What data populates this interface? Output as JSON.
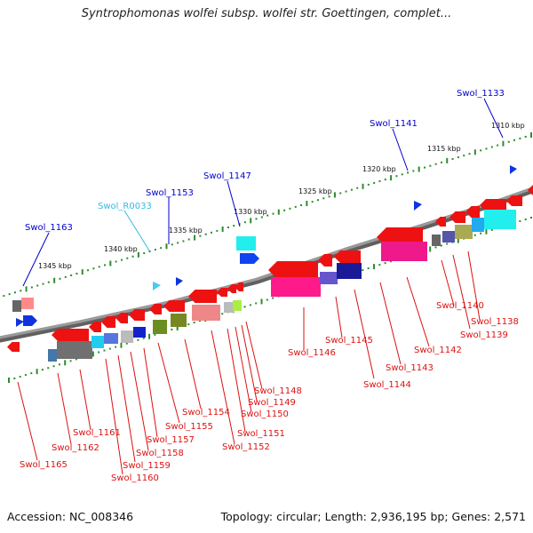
{
  "title": "Syntrophomonas wolfei subsp. wolfei str. Goettingen, complet...",
  "footer": {
    "accession": "Accession: NC_008346",
    "topology": "Topology: circular; Length: 2,936,195 bp; Genes: 2,571"
  },
  "colors": {
    "backbone": "#808080",
    "tick": "#2e8b2e",
    "forward_label": "#0000cc",
    "rna_label": "#33bbdd",
    "reverse_label": "#dd1111"
  },
  "scale_labels": [
    "1310 kbp",
    "1315 kbp",
    "1320 kbp",
    "1325 kbp",
    "1330 kbp",
    "1335 kbp",
    "1340 kbp",
    "1345 kbp"
  ],
  "forward_labels": [
    "Swol_1133",
    "Swol_1141",
    "Swol_1147",
    "Swol_1153",
    "Swol_1163"
  ],
  "rna_labels": [
    "Swol_R0033"
  ],
  "reverse_labels": [
    "Swol_1138",
    "Swol_1139",
    "Swol_1140",
    "Swol_1142",
    "Swol_1143",
    "Swol_1144",
    "Swol_1145",
    "Swol_1146",
    "Swol_1148",
    "Swol_1149",
    "Swol_1150",
    "Swol_1151",
    "Swol_1152",
    "Swol_1154",
    "Swol_1155",
    "Swol_1157",
    "Swol_1158",
    "Swol_1159",
    "Swol_1160",
    "Swol_1161",
    "Swol_1162",
    "Swol_1165"
  ]
}
